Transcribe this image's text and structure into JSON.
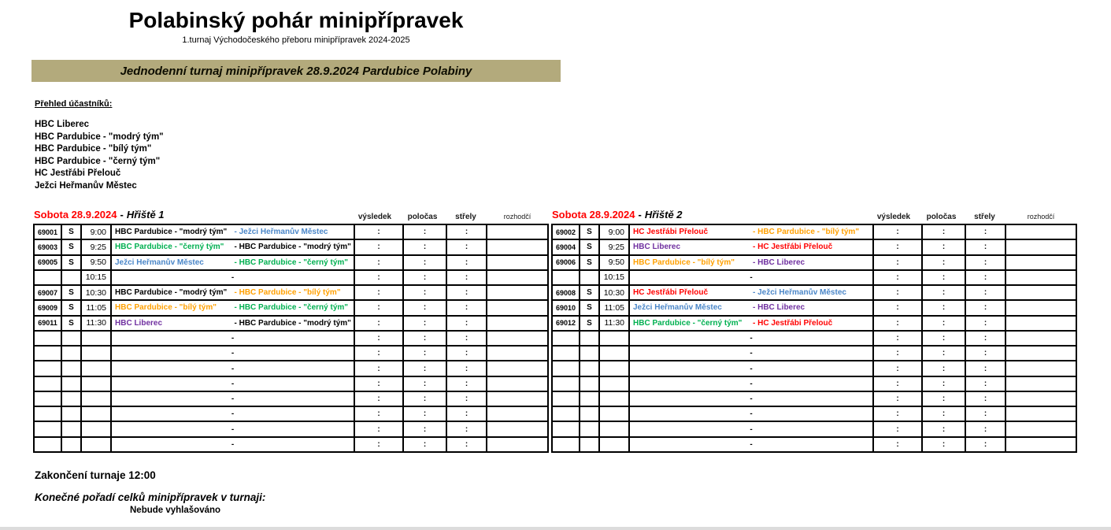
{
  "header": {
    "title": "Polabinský pohár minipřípravek",
    "subtitle": "1.turnaj Východočeského přeboru minipřípravek 2024-2025",
    "banner": "Jednodenní turnaj minipřípravek 28.9.2024 Pardubice Polabiny"
  },
  "participants": {
    "heading": "Přehled účastníků:",
    "teams": [
      "HBC Liberec",
      "HBC Pardubice - \"modrý tým\"",
      "HBC Pardubice - \"bílý tým\"",
      "HBC Pardubice - \"černý tým\"",
      "HC Jestřábi Přelouč",
      "Ježci Heřmanův Městec"
    ]
  },
  "colors": {
    "red": "#FF0000",
    "green": "#00B050",
    "orange": "#FFA000",
    "blue": "#4A86C8",
    "purple": "#7030A0",
    "black": "#000000",
    "banner_bg": "#B3AA7C"
  },
  "labels": {
    "rink_title_sep": "-",
    "day_letter": "S"
  },
  "row_symbols": {
    "score_sep": ":",
    "placeholder_dash": "-"
  },
  "schedule_columns": [
    "výsledek",
    "poločas",
    "střely",
    "rozhodčí"
  ],
  "rinks": [
    {
      "date_label": "Sobota 28.9.2024",
      "rink_label": "Hřiště 1",
      "rows": [
        {
          "type": "match",
          "num": "69001",
          "day": "S",
          "time": "9:00",
          "home": "HBC Pardubice - \"modrý tým\"",
          "home_color": "#000000",
          "away": "Ježci Heřmanův Městec",
          "away_color": "#4A86C8"
        },
        {
          "type": "match",
          "num": "69003",
          "day": "S",
          "time": "9:25",
          "home": "HBC Pardubice - \"černý tým\"",
          "home_color": "#00B050",
          "away": "HBC Pardubice - \"modrý tým\"",
          "away_color": "#000000"
        },
        {
          "type": "match",
          "num": "69005",
          "day": "S",
          "time": "9:50",
          "home": "Ježci Heřmanův Městec",
          "home_color": "#4A86C8",
          "away": "HBC Pardubice - \"černý tým\"",
          "away_color": "#00B050"
        },
        {
          "type": "break",
          "num": "",
          "day": "",
          "time": "10:15"
        },
        {
          "type": "match",
          "num": "69007",
          "day": "S",
          "time": "10:30",
          "home": "HBC Pardubice - \"modrý tým\"",
          "home_color": "#000000",
          "away": "HBC Pardubice - \"bílý tým\"",
          "away_color": "#FFA000"
        },
        {
          "type": "match",
          "num": "69009",
          "day": "S",
          "time": "11:05",
          "home": "HBC Pardubice - \"bílý tým\"",
          "home_color": "#FFA000",
          "away": "HBC Pardubice - \"černý tým\"",
          "away_color": "#00B050"
        },
        {
          "type": "match",
          "num": "69011",
          "day": "S",
          "time": "11:30",
          "home": "HBC Liberec",
          "home_color": "#7030A0",
          "away": "HBC Pardubice - \"modrý tým\"",
          "away_color": "#000000"
        },
        {
          "type": "empty"
        },
        {
          "type": "empty"
        },
        {
          "type": "empty"
        },
        {
          "type": "empty"
        },
        {
          "type": "empty"
        },
        {
          "type": "empty"
        },
        {
          "type": "empty"
        },
        {
          "type": "empty"
        }
      ]
    },
    {
      "date_label": "Sobota 28.9.2024",
      "rink_label": "Hřiště 2",
      "rows": [
        {
          "type": "match",
          "num": "69002",
          "day": "S",
          "time": "9:00",
          "home": "HC Jestřábi Přelouč",
          "home_color": "#FF0000",
          "away": "HBC Pardubice - \"bílý tým\"",
          "away_color": "#FFA000"
        },
        {
          "type": "match",
          "num": "69004",
          "day": "S",
          "time": "9:25",
          "home": "HBC Liberec",
          "home_color": "#7030A0",
          "away": "HC Jestřábi Přelouč",
          "away_color": "#FF0000"
        },
        {
          "type": "match",
          "num": "69006",
          "day": "S",
          "time": "9:50",
          "home": "HBC Pardubice - \"bílý tým\"",
          "home_color": "#FFA000",
          "away": "HBC Liberec",
          "away_color": "#7030A0"
        },
        {
          "type": "break",
          "num": "",
          "day": "",
          "time": "10:15"
        },
        {
          "type": "match",
          "num": "69008",
          "day": "S",
          "time": "10:30",
          "home": "HC Jestřábi Přelouč",
          "home_color": "#FF0000",
          "away": "Ježci Heřmanův Městec",
          "away_color": "#4A86C8"
        },
        {
          "type": "match",
          "num": "69010",
          "day": "S",
          "time": "11:05",
          "home": "Ježci Heřmanův Městec",
          "home_color": "#4A86C8",
          "away": "HBC Liberec",
          "away_color": "#7030A0"
        },
        {
          "type": "match",
          "num": "69012",
          "day": "S",
          "time": "11:30",
          "home": "HBC Pardubice - \"černý tým\"",
          "home_color": "#00B050",
          "away": "HC Jestřábi Přelouč",
          "away_color": "#FF0000"
        },
        {
          "type": "empty"
        },
        {
          "type": "empty"
        },
        {
          "type": "empty"
        },
        {
          "type": "empty"
        },
        {
          "type": "empty"
        },
        {
          "type": "empty"
        },
        {
          "type": "empty"
        },
        {
          "type": "empty"
        }
      ]
    }
  ],
  "footer": {
    "closing": "Zakončení turnaje 12:00",
    "final_heading": "Konečné pořadí celků minipřípravek v turnaji:",
    "final_note": "Nebude vyhlašováno"
  }
}
